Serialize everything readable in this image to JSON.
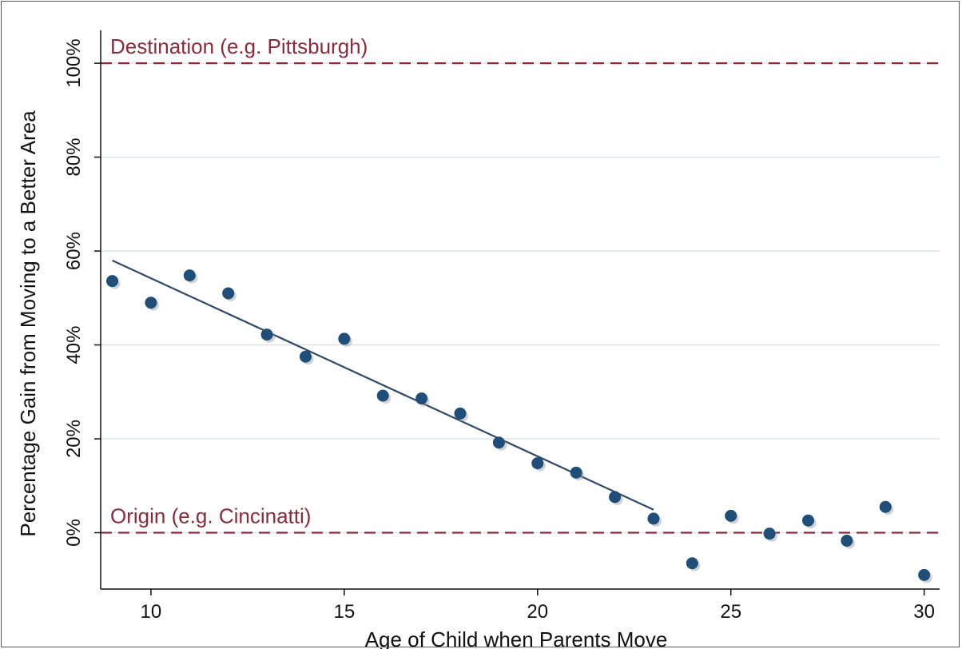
{
  "chart_data": {
    "type": "scatter",
    "xlabel": "Age of Child when Parents Move",
    "ylabel": "Percentage Gain from Moving to a Better Area",
    "xlim": [
      8.7,
      30.4
    ],
    "ylim": [
      -12,
      107
    ],
    "x_ticks": [
      10,
      15,
      20,
      25,
      30
    ],
    "y_ticks": [
      {
        "value": 0,
        "label": "0%"
      },
      {
        "value": 20,
        "label": "20%"
      },
      {
        "value": 40,
        "label": "40%"
      },
      {
        "value": 60,
        "label": "60%"
      },
      {
        "value": 80,
        "label": "80%"
      },
      {
        "value": 100,
        "label": "100%"
      }
    ],
    "grid": "horizontal",
    "points": [
      {
        "x": 9,
        "y": 53.6
      },
      {
        "x": 10,
        "y": 49.0
      },
      {
        "x": 11,
        "y": 54.8
      },
      {
        "x": 12,
        "y": 51.0
      },
      {
        "x": 13,
        "y": 42.2
      },
      {
        "x": 14,
        "y": 37.5
      },
      {
        "x": 15,
        "y": 41.3
      },
      {
        "x": 16,
        "y": 29.2
      },
      {
        "x": 17,
        "y": 28.6
      },
      {
        "x": 18,
        "y": 25.4
      },
      {
        "x": 19,
        "y": 19.2
      },
      {
        "x": 20,
        "y": 14.8
      },
      {
        "x": 21,
        "y": 12.8
      },
      {
        "x": 22,
        "y": 7.6
      },
      {
        "x": 23,
        "y": 3.0
      },
      {
        "x": 24,
        "y": -6.5
      },
      {
        "x": 25,
        "y": 3.6
      },
      {
        "x": 26,
        "y": -0.2
      },
      {
        "x": 27,
        "y": 2.6
      },
      {
        "x": 28,
        "y": -1.7
      },
      {
        "x": 29,
        "y": 5.5
      },
      {
        "x": 30,
        "y": -9.0
      }
    ],
    "fit_line": {
      "x": [
        9,
        23
      ],
      "y": [
        58.0,
        4.9
      ]
    },
    "reference_lines": [
      {
        "y": 100,
        "label": "Destination (e.g. Pittsburgh)"
      },
      {
        "y": 0,
        "label": "Origin (e.g. Cincinatti)"
      }
    ],
    "colors": {
      "points": "#1f4e79",
      "fit_line": "#2e4a6b",
      "reference": "#8b2a3a",
      "grid": "#dbe6e6"
    }
  }
}
